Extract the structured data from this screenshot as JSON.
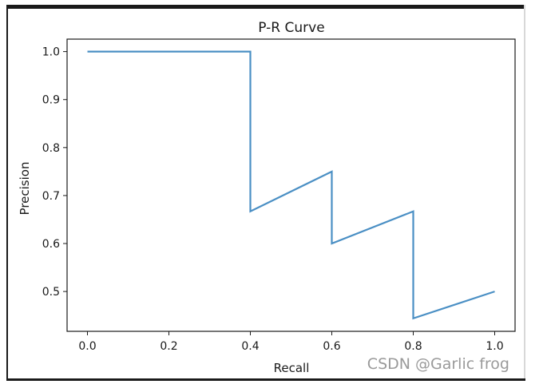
{
  "chart_data": {
    "type": "line",
    "title": "P-R Curve",
    "xlabel": "Recall",
    "ylabel": "Precision",
    "xlim": [
      -0.05,
      1.05
    ],
    "ylim": [
      0.417,
      1.026
    ],
    "xticks": [
      0.0,
      0.2,
      0.4,
      0.6,
      0.8,
      1.0
    ],
    "xtick_labels": [
      "0.0",
      "0.2",
      "0.4",
      "0.6",
      "0.8",
      "1.0"
    ],
    "yticks": [
      0.5,
      0.6,
      0.7,
      0.8,
      0.9,
      1.0
    ],
    "ytick_labels": [
      "0.5",
      "0.6",
      "0.7",
      "0.8",
      "0.9",
      "1.0"
    ],
    "grid": false,
    "series": [
      {
        "color": "#4a8fc4",
        "x": [
          0.0,
          0.4,
          0.4,
          0.6,
          0.6,
          0.8,
          0.8,
          1.0
        ],
        "y": [
          1.0,
          1.0,
          0.667,
          0.75,
          0.6,
          0.667,
          0.444,
          0.5
        ]
      }
    ]
  },
  "watermark": "CSDN @Garlic frog"
}
